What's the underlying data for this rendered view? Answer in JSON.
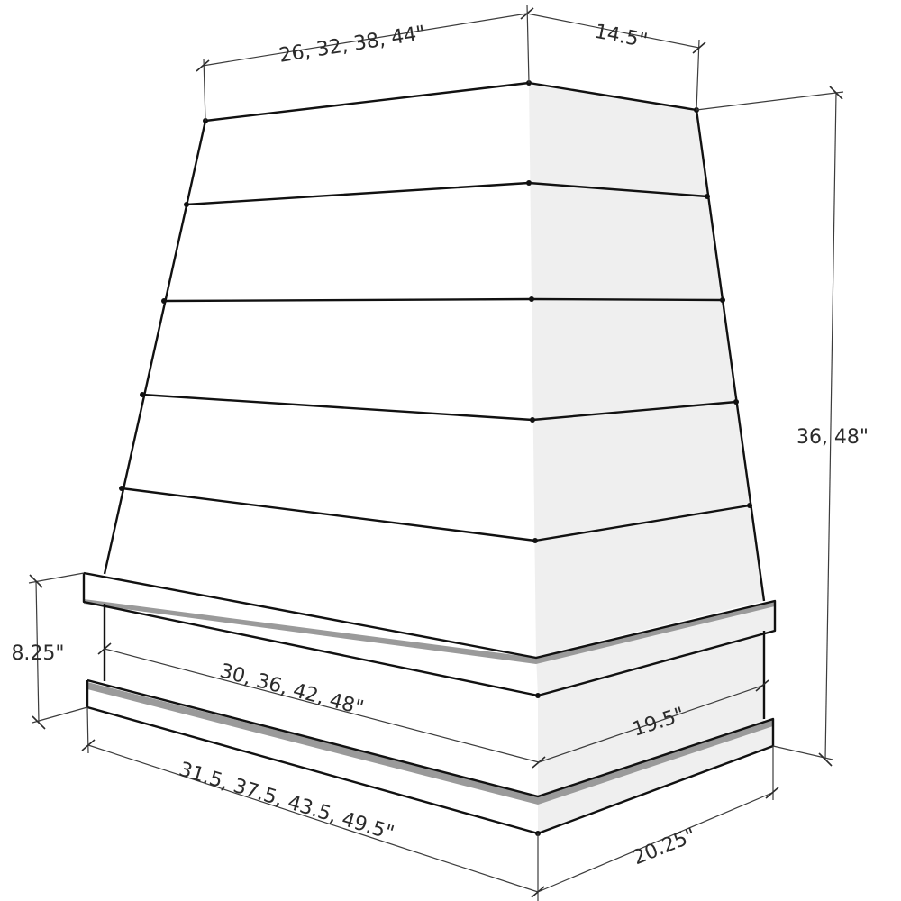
{
  "dimensions": {
    "top_width": "26, 32, 38, 44\"",
    "top_depth": "14.5\"",
    "height": "36, 48\"",
    "band_height": "8.25\"",
    "band_width": "30, 36, 42, 48\"",
    "band_depth": "19.5\"",
    "bottom_width": "31.5, 37.5, 43.5, 49.5\"",
    "bottom_depth": "20.25\""
  }
}
